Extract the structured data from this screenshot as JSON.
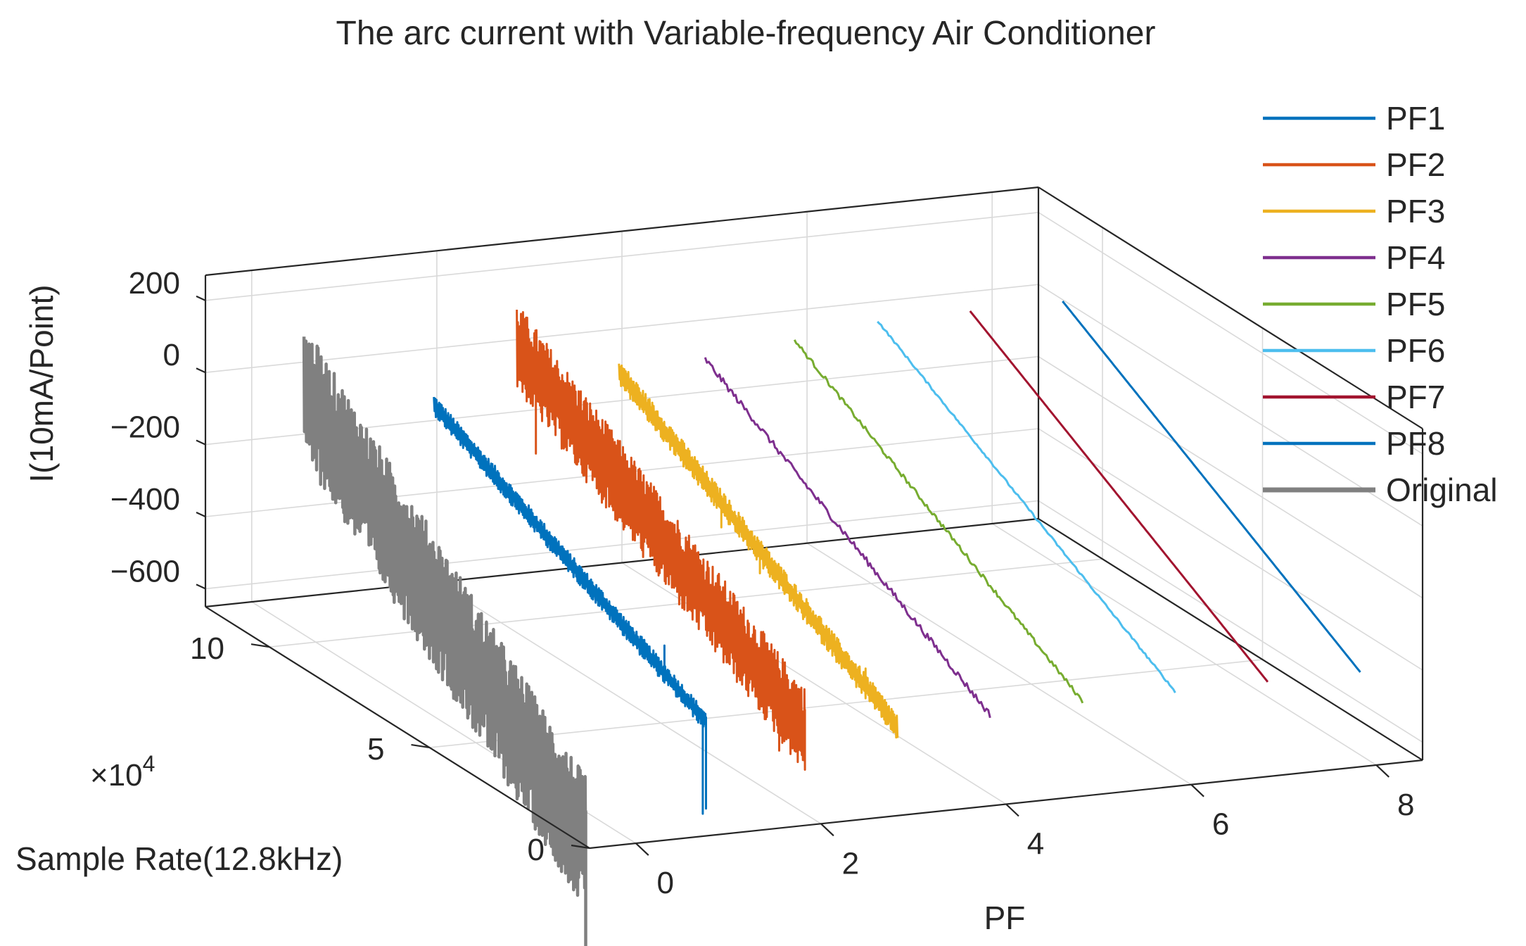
{
  "chart_data": {
    "type": "line-3d-waterfall",
    "title": "The arc current with Variable-frequency Air Conditioner",
    "xlabel": "PF",
    "ylabel": "Sample Rate(12.8kHz)",
    "zlabel": "I(10mA/Point)",
    "y_multiplier": "×10",
    "y_multiplier_exp": "4",
    "x_ticks": [
      "0",
      "2",
      "4",
      "6",
      "8"
    ],
    "y_ticks": [
      "0",
      "5",
      "10"
    ],
    "z_ticks": [
      "200",
      "0",
      "-200",
      "-400",
      "-600"
    ],
    "xlim": [
      -0.5,
      8.5
    ],
    "ylim": [
      0,
      12
    ],
    "zlim": [
      -650,
      270
    ],
    "grid": true,
    "legend_position": "top-right",
    "series": [
      {
        "name": "PF1",
        "pf": 1,
        "color": "#0072BD",
        "line": "thin",
        "start": [
          9.2,
          40
        ],
        "end": [
          0.7,
          -365
        ],
        "noise": 28,
        "spikes": [
          [
            2.0,
            -240
          ],
          [
            0.8,
            -640
          ],
          [
            0.1,
            -620
          ]
        ]
      },
      {
        "name": "PF2",
        "pf": 2,
        "color": "#D95319",
        "line": "thin",
        "start": [
          9.5,
          205
        ],
        "end": [
          0.5,
          -360
        ],
        "noise": 120,
        "spikes": [
          [
            8.9,
            -120
          ],
          [
            1.3,
            -520
          ],
          [
            0.2,
            -580
          ],
          [
            0.05,
            -470
          ]
        ]
      },
      {
        "name": "PF3",
        "pf": 3,
        "color": "#EDB120",
        "line": "thin",
        "start": [
          9.2,
          80
        ],
        "end": [
          0.5,
          -420
        ],
        "noise": 35,
        "spikes": [
          [
            6.0,
            -190
          ],
          [
            4.8,
            -250
          ],
          [
            1.5,
            -330
          ]
        ]
      },
      {
        "name": "PF4",
        "pf": 4,
        "color": "#7E2F8E",
        "line": "thin",
        "start": [
          9.4,
          60
        ],
        "end": [
          0.5,
          -430
        ],
        "noise": 9,
        "spikes": []
      },
      {
        "name": "PF5",
        "pf": 5,
        "color": "#77AC30",
        "line": "thin",
        "start": [
          9.5,
          80
        ],
        "end": [
          0.5,
          -420
        ],
        "noise": 6,
        "spikes": []
      },
      {
        "name": "PF6",
        "pf": 6,
        "color": "#4DBEEE",
        "line": "thin",
        "start": [
          9.8,
          90
        ],
        "end": [
          0.5,
          -420
        ],
        "noise": 3,
        "spikes": []
      },
      {
        "name": "PF7",
        "pf": 7,
        "color": "#A2142F",
        "line": "thin",
        "start": [
          9.8,
          90
        ],
        "end": [
          0.5,
          -420
        ],
        "noise": 0,
        "spikes": []
      },
      {
        "name": "PF8",
        "pf": 8,
        "color": "#0072BD",
        "line": "thin",
        "start": [
          9.8,
          90
        ],
        "end": [
          0.5,
          -420
        ],
        "noise": 0,
        "spikes": []
      },
      {
        "name": "Original",
        "pf": -0.3,
        "color": "#808080",
        "line": "thick",
        "start": [
          9.5,
          175
        ],
        "end": [
          0.7,
          -590
        ],
        "noise": 185,
        "spikes": [
          [
            0.3,
            -1000
          ],
          [
            4.0,
            -280
          ]
        ]
      }
    ]
  }
}
